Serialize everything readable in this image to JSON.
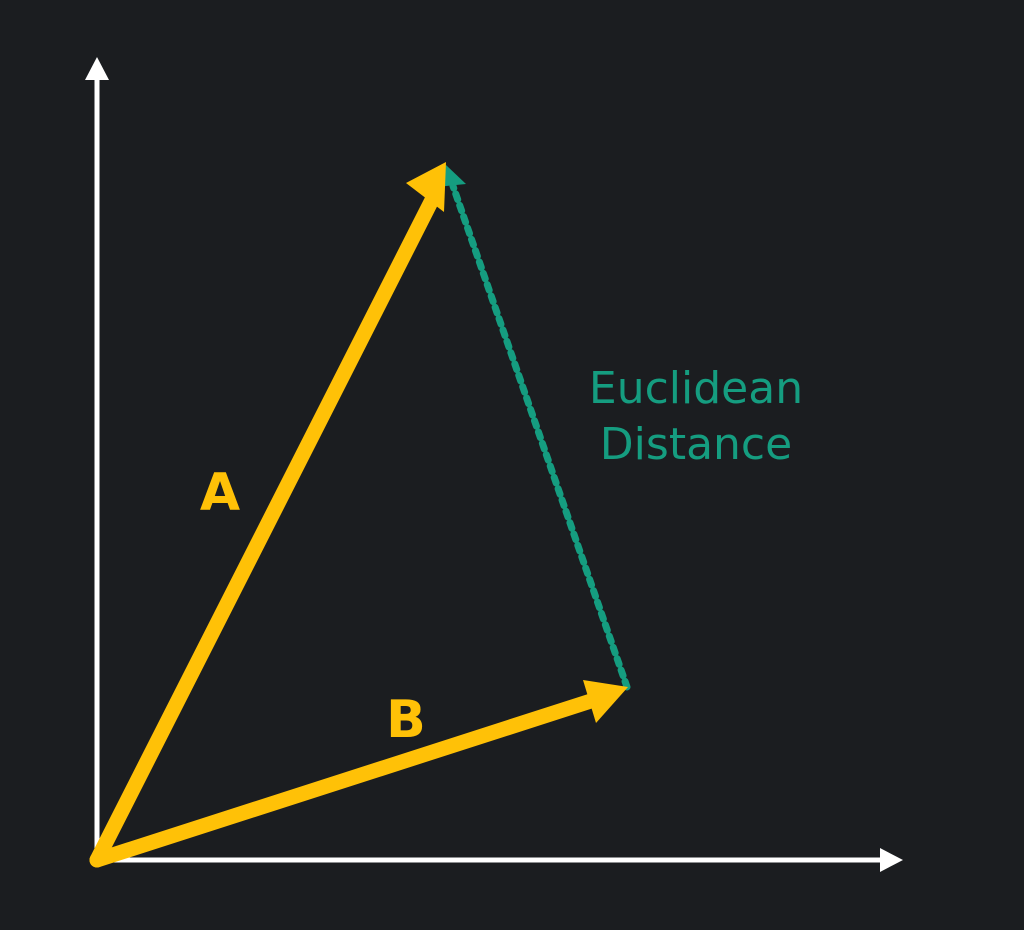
{
  "colors": {
    "background": "#1b1d20",
    "axes": "#ffffff",
    "vector": "#ffc107",
    "distance": "#159d80"
  },
  "vectors": {
    "a_label": "A",
    "b_label": "B"
  },
  "distance_label": {
    "line1": "Euclidean",
    "line2": "Distance"
  }
}
